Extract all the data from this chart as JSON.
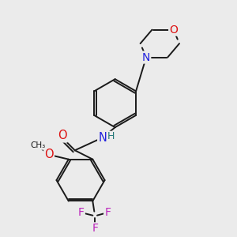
{
  "background_color": "#ebebeb",
  "bond_color": "#1a1a1a",
  "atom_colors": {
    "O": "#dd1111",
    "N": "#2222dd",
    "F": "#bb22bb",
    "H": "#227777",
    "C": "#1a1a1a"
  },
  "figsize": [
    3.0,
    3.0
  ],
  "dpi": 100
}
